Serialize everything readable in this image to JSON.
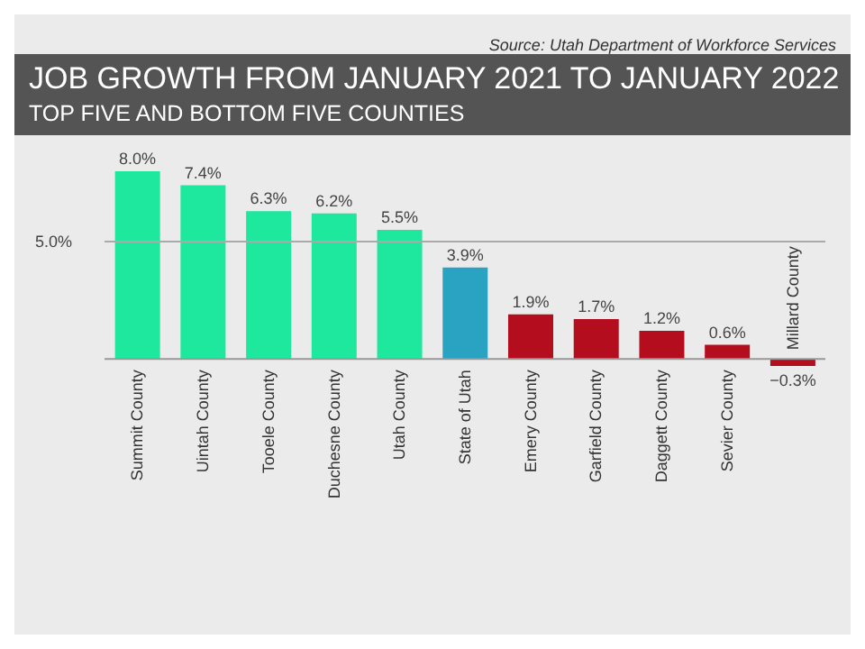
{
  "chart_data": {
    "type": "bar",
    "title": "JOB GROWTH FROM JANUARY 2021 TO JANUARY 2022",
    "subtitle": "TOP FIVE AND BOTTOM FIVE COUNTIES",
    "annotations": [
      "Source: Utah Department of Workforce Services"
    ],
    "categories": [
      "Summit County",
      "Uintah County",
      "Tooele County",
      "Duchesne County",
      "Utah County",
      "State of Utah",
      "Emery County",
      "Garfield County",
      "Daggett County",
      "Sevier County",
      "Millard County"
    ],
    "values": [
      8.0,
      7.4,
      6.3,
      6.2,
      5.5,
      3.9,
      1.9,
      1.7,
      1.2,
      0.6,
      -0.3
    ],
    "colors": [
      "#1ee89e",
      "#1ee89e",
      "#1ee89e",
      "#1ee89e",
      "#1ee89e",
      "#2aa3c2",
      "#b30d1e",
      "#b30d1e",
      "#b30d1e",
      "#b30d1e",
      "#b30d1e"
    ],
    "value_labels": [
      "8.0%",
      "7.4%",
      "6.3%",
      "6.2%",
      "5.5%",
      "3.9%",
      "1.9%",
      "1.7%",
      "1.2%",
      "0.6%",
      "−0.3%"
    ],
    "ref_lines": [
      {
        "axis": "y",
        "value": 5,
        "label": "5.0%",
        "color": "#aaaaaa"
      }
    ]
  }
}
